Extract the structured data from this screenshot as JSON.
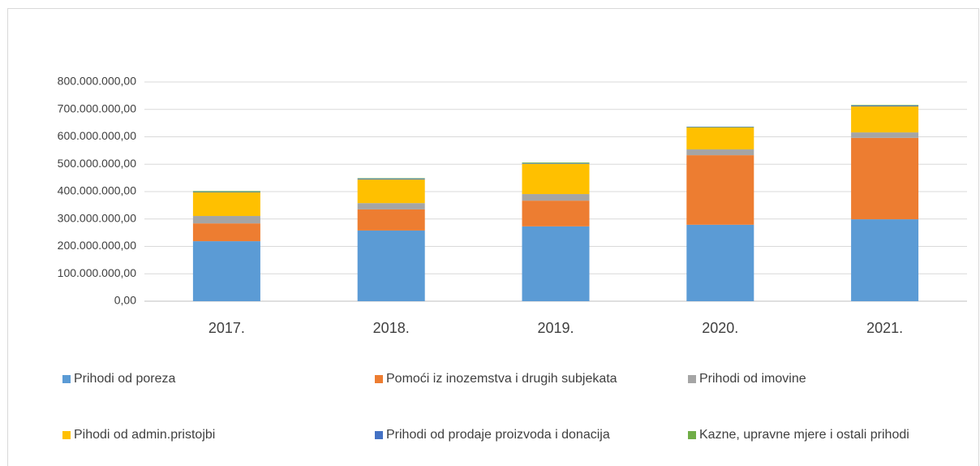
{
  "chart_data": {
    "type": "stacked_bar",
    "categories": [
      "2017.",
      "2018.",
      "2019.",
      "2020.",
      "2021."
    ],
    "series": [
      {
        "name": "Prihodi od poreza",
        "color": "#5b9bd5",
        "values": [
          219000000,
          258000000,
          273000000,
          279000000,
          299000000
        ]
      },
      {
        "name": "Pomoći iz inozemstva i drugih subjekata",
        "color": "#ed7d31",
        "values": [
          65000000,
          77000000,
          94000000,
          254000000,
          297000000
        ]
      },
      {
        "name": "Prihodi od imovine",
        "color": "#a5a5a5",
        "values": [
          27000000,
          23000000,
          24000000,
          21000000,
          20000000
        ]
      },
      {
        "name": "Pihodi od admin.pristojbi",
        "color": "#ffc000",
        "values": [
          86000000,
          86000000,
          110000000,
          80000000,
          95000000
        ]
      },
      {
        "name": "Prihodi od prodaje proizvoda i donacija",
        "color": "#4472c4",
        "values": [
          2000000,
          3000000,
          2000000,
          2000000,
          3000000
        ]
      },
      {
        "name": "Kazne, upravne mjere i ostali prihodi",
        "color": "#70ad47",
        "values": [
          3000000,
          2000000,
          3000000,
          1000000,
          2000000
        ]
      }
    ],
    "ylim": [
      0,
      800000000
    ],
    "yticks": [
      {
        "value": 0,
        "label": "0,00"
      },
      {
        "value": 100000000,
        "label": "100.000.000,00"
      },
      {
        "value": 200000000,
        "label": "200.000.000,00"
      },
      {
        "value": 300000000,
        "label": "300.000.000,00"
      },
      {
        "value": 400000000,
        "label": "400.000.000,00"
      },
      {
        "value": 500000000,
        "label": "500.000.000,00"
      },
      {
        "value": 600000000,
        "label": "600.000.000,00"
      },
      {
        "value": 700000000,
        "label": "700.000.000,00"
      },
      {
        "value": 800000000,
        "label": "800.000.000,00"
      }
    ],
    "grid": true,
    "legend": "bottom"
  }
}
